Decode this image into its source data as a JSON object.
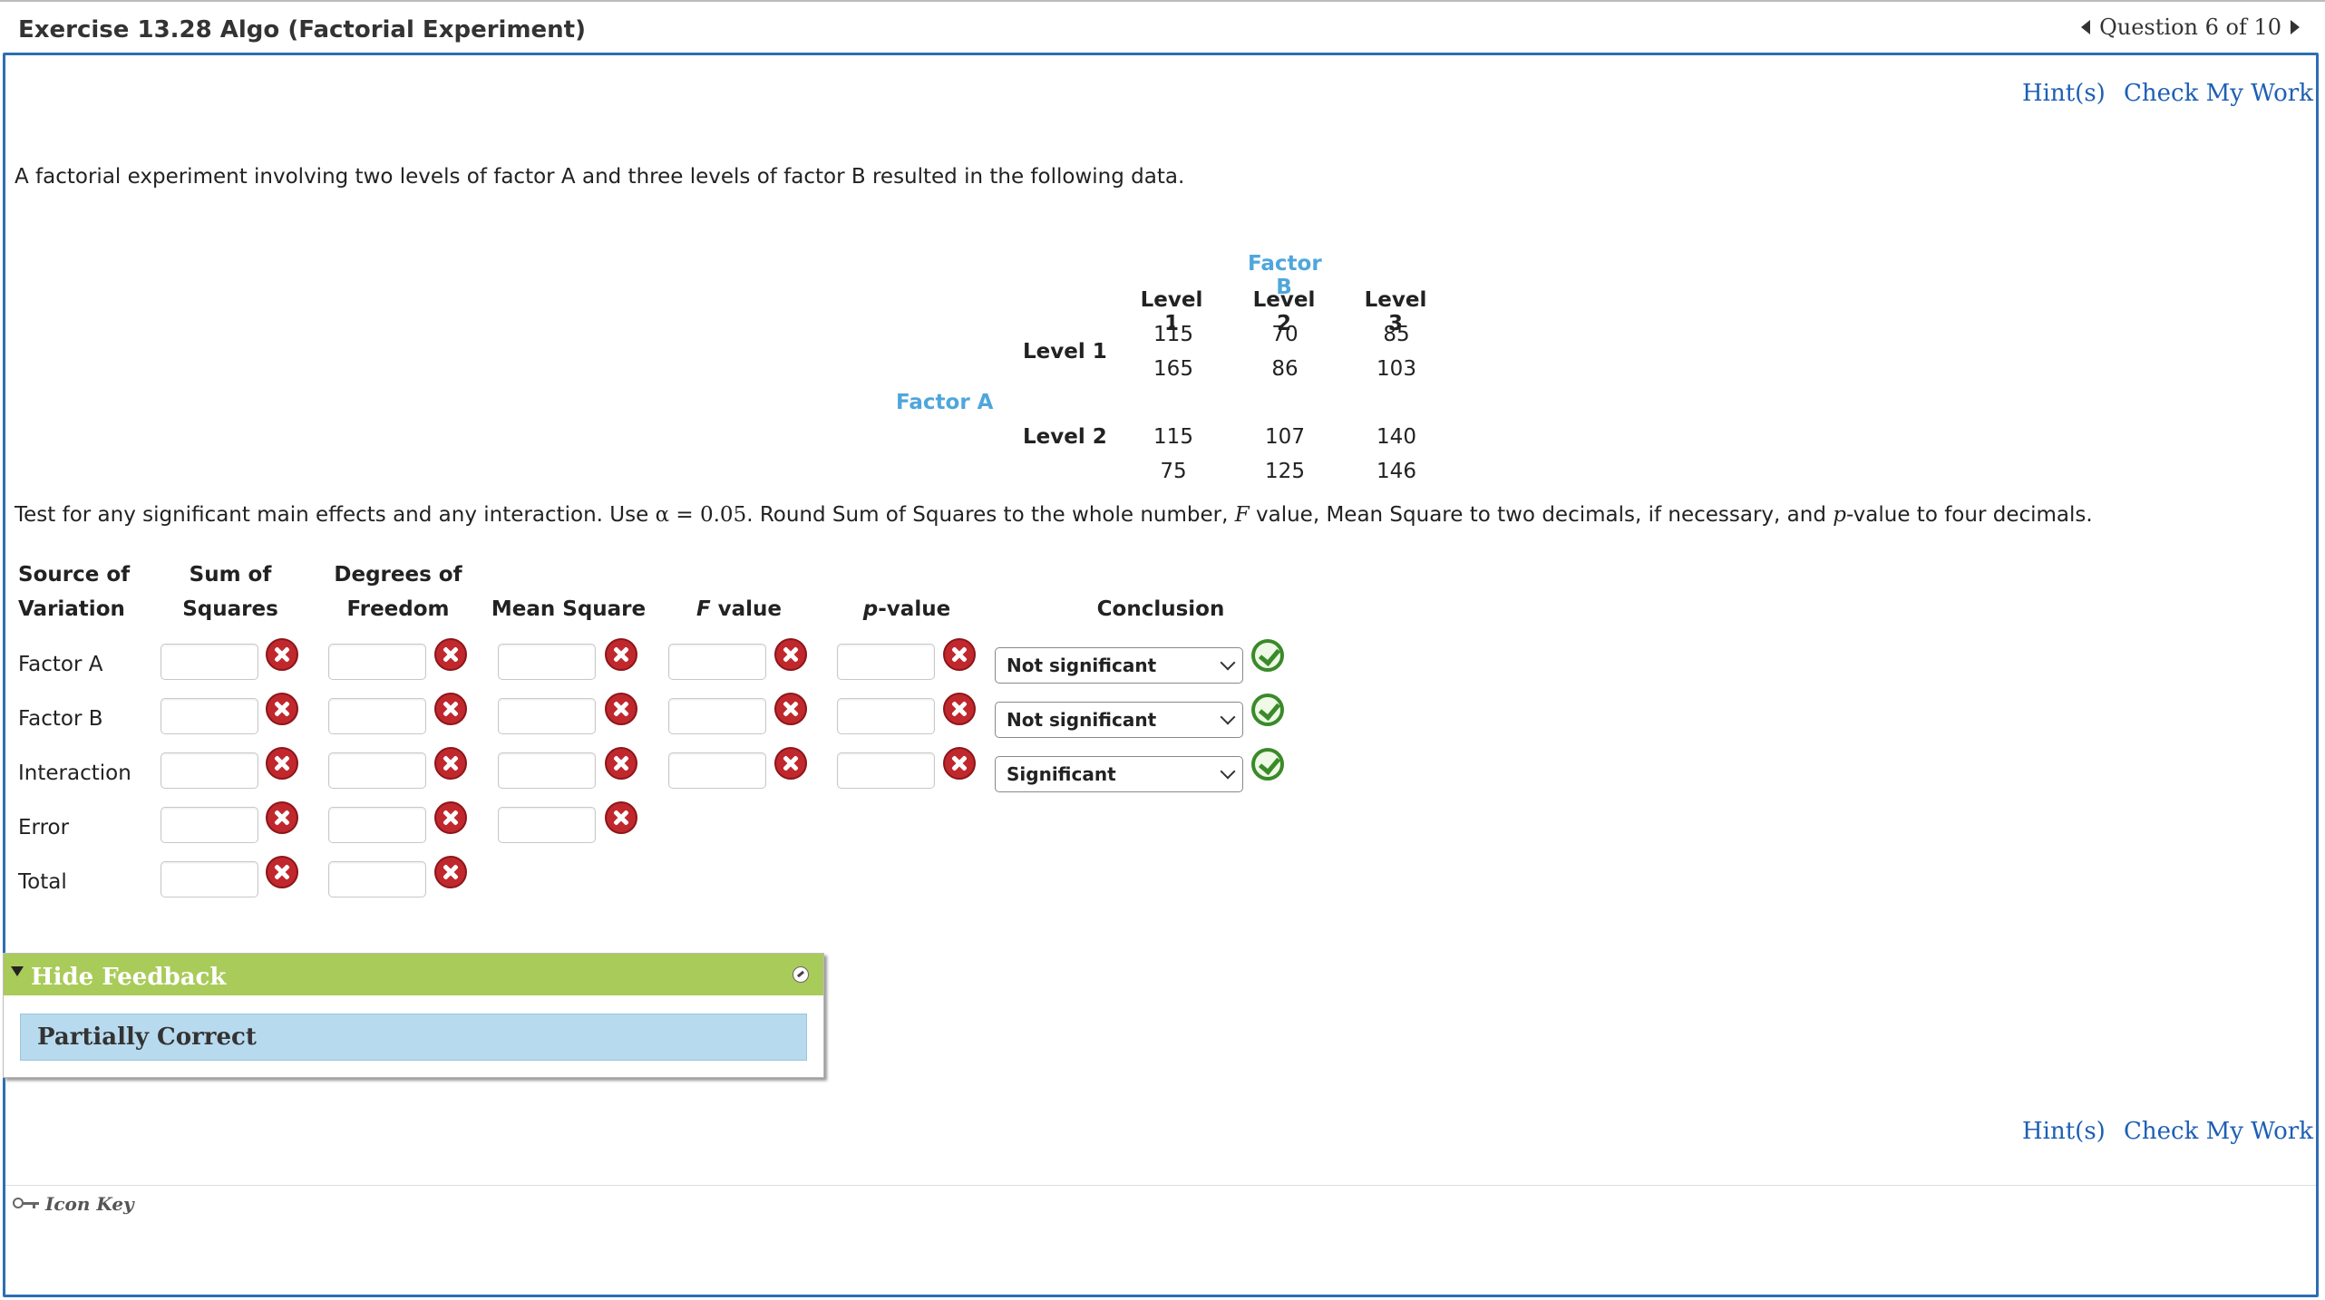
{
  "header": {
    "title": "Exercise 13.28 Algo (Factorial Experiment)",
    "question_nav": "Question 6 of 10"
  },
  "links": {
    "hints": "Hint(s)",
    "check_work": "Check My Work"
  },
  "intro": "A factorial experiment involving two levels of factor A and three levels of factor B resulted in the following data.",
  "data_table": {
    "factor_b_label": "Factor B",
    "factor_a_label": "Factor A",
    "b_levels": [
      "Level 1",
      "Level 2",
      "Level 3"
    ],
    "a_levels": [
      "Level 1",
      "Level 2"
    ],
    "values": [
      [
        [
          "115",
          "165"
        ],
        [
          "70",
          "86"
        ],
        [
          "85",
          "103"
        ]
      ],
      [
        [
          "115",
          "75"
        ],
        [
          "107",
          "125"
        ],
        [
          "140",
          "146"
        ]
      ]
    ]
  },
  "instructions": {
    "p1": "Test for any significant main effects and any interaction. Use ",
    "alpha": "α = 0.05",
    "p2": ". Round Sum of Squares to the whole number, ",
    "F": "F",
    "p3": " value, Mean Square to two decimals, if necessary, and ",
    "p": "p",
    "p4": "-value to four decimals."
  },
  "anova": {
    "headers": {
      "source": [
        "Source of",
        "Variation"
      ],
      "ss": [
        "Sum of",
        "Squares"
      ],
      "df": [
        "Degrees of",
        "Freedom"
      ],
      "ms": "Mean Square",
      "f": "F value",
      "f_italic": "F",
      "f_rest": " value",
      "p_italic": "p",
      "p_rest": "-value",
      "conclusion": "Conclusion"
    },
    "rows": [
      "Factor A",
      "Factor B",
      "Interaction",
      "Error",
      "Total"
    ],
    "conclusions": [
      "Not significant",
      "Not significant",
      "Significant"
    ]
  },
  "feedback": {
    "toggle": "Hide Feedback",
    "status": "Partially Correct"
  },
  "footer": {
    "icon_key": "Icon Key"
  },
  "colors": {
    "accent_blue": "#2e6db4",
    "link_blue": "#1d5fb5",
    "factor_label": "#4fa6dc",
    "feedback_green": "#a9cb5a",
    "feedback_status_bg": "#b8daee",
    "error_red": "#c0282d",
    "ok_green": "#3a8a2a"
  }
}
